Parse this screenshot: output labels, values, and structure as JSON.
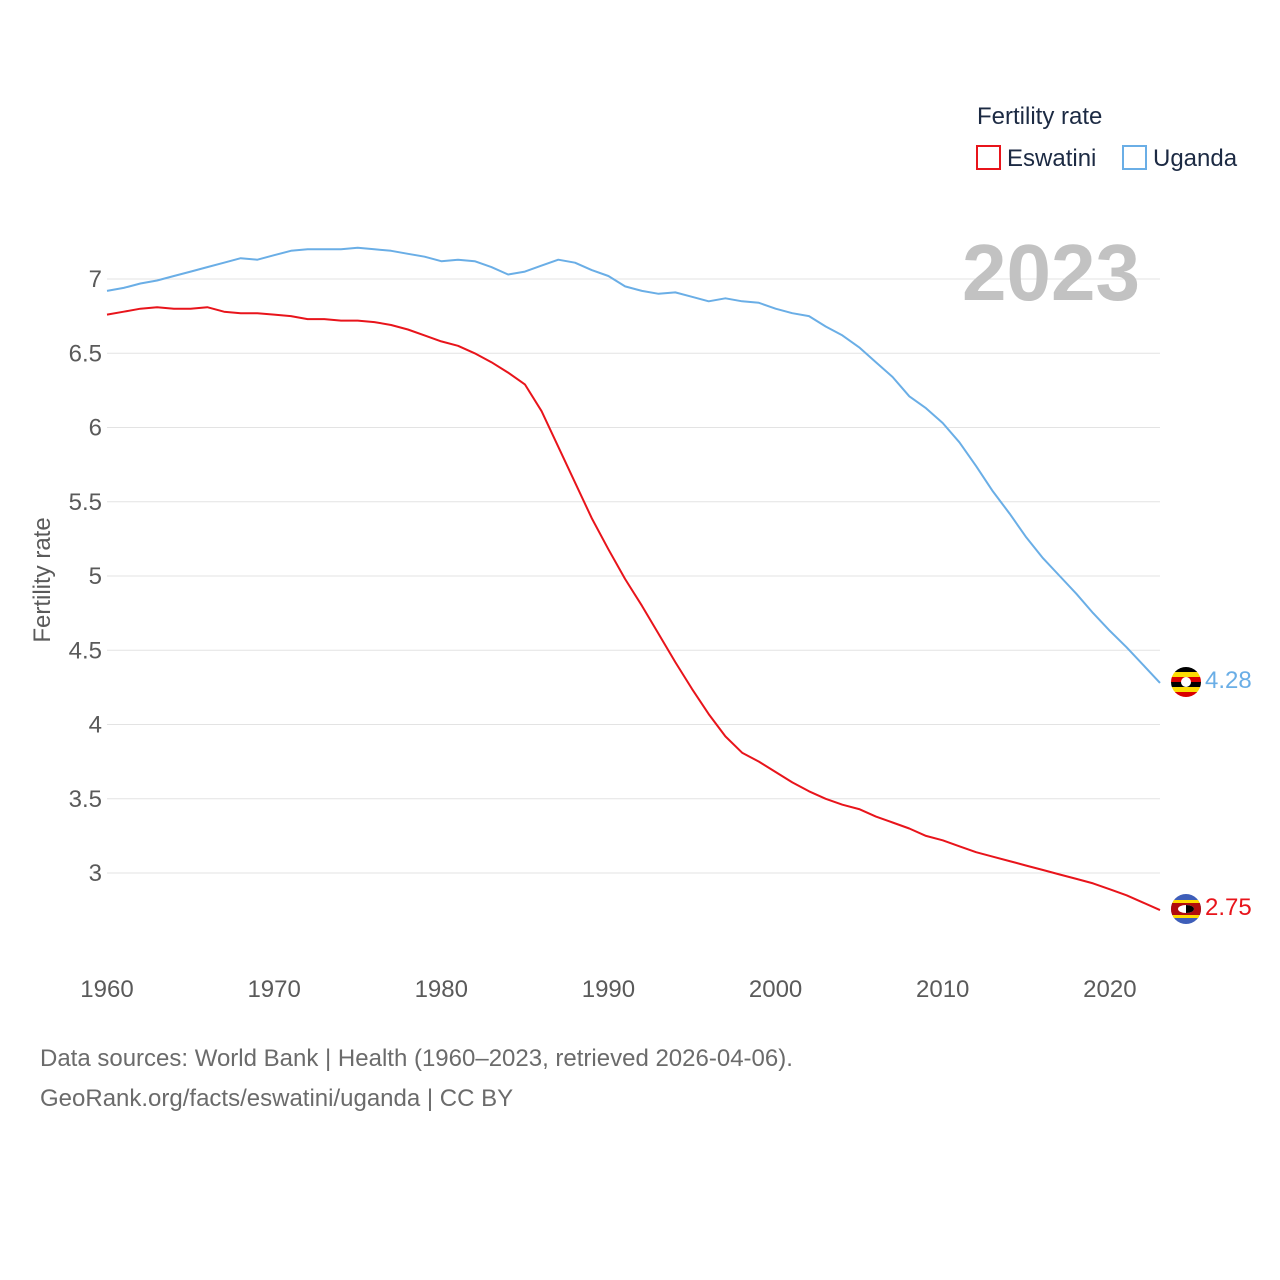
{
  "chart_data": {
    "type": "line",
    "title": "",
    "xlabel": "",
    "ylabel": "Fertility rate",
    "legend_title": "Fertility rate",
    "legend_position": "top-right",
    "year_label": "2023",
    "xlim": [
      1960,
      2023
    ],
    "ylim": [
      2.55,
      7.2
    ],
    "x_ticks": [
      1960,
      1970,
      1980,
      1990,
      2000,
      2010,
      2020
    ],
    "y_ticks": [
      3,
      3.5,
      4,
      4.5,
      5,
      5.5,
      6,
      6.5,
      7
    ],
    "y_tick_labels": [
      "3",
      "3.5",
      "4",
      "4.5",
      "5",
      "5.5",
      "6",
      "6.5",
      "7"
    ],
    "x": [
      1960,
      1961,
      1962,
      1963,
      1964,
      1965,
      1966,
      1967,
      1968,
      1969,
      1970,
      1971,
      1972,
      1973,
      1974,
      1975,
      1976,
      1977,
      1978,
      1979,
      1980,
      1981,
      1982,
      1983,
      1984,
      1985,
      1986,
      1987,
      1988,
      1989,
      1990,
      1991,
      1992,
      1993,
      1994,
      1995,
      1996,
      1997,
      1998,
      1999,
      2000,
      2001,
      2002,
      2003,
      2004,
      2005,
      2006,
      2007,
      2008,
      2009,
      2010,
      2011,
      2012,
      2013,
      2014,
      2015,
      2016,
      2017,
      2018,
      2019,
      2020,
      2021,
      2022,
      2023
    ],
    "series": [
      {
        "name": "Eswatini",
        "color": "#e8141b",
        "end_label": "2.75",
        "flag": "eswatini-flag-icon",
        "values": [
          6.76,
          6.78,
          6.8,
          6.81,
          6.8,
          6.8,
          6.81,
          6.78,
          6.77,
          6.77,
          6.76,
          6.75,
          6.73,
          6.73,
          6.72,
          6.72,
          6.71,
          6.69,
          6.66,
          6.62,
          6.58,
          6.55,
          6.5,
          6.44,
          6.37,
          6.29,
          6.11,
          5.87,
          5.63,
          5.39,
          5.18,
          4.98,
          4.8,
          4.61,
          4.42,
          4.24,
          4.07,
          3.92,
          3.81,
          3.75,
          3.68,
          3.61,
          3.55,
          3.5,
          3.46,
          3.43,
          3.38,
          3.34,
          3.3,
          3.25,
          3.22,
          3.18,
          3.14,
          3.11,
          3.08,
          3.05,
          3.02,
          2.99,
          2.96,
          2.93,
          2.89,
          2.85,
          2.8,
          2.75
        ]
      },
      {
        "name": "Uganda",
        "color": "#6aaee6",
        "end_label": "4.28",
        "flag": "uganda-flag-icon",
        "values": [
          6.92,
          6.94,
          6.97,
          6.99,
          7.02,
          7.05,
          7.08,
          7.11,
          7.14,
          7.13,
          7.16,
          7.19,
          7.2,
          7.2,
          7.2,
          7.21,
          7.2,
          7.19,
          7.17,
          7.15,
          7.12,
          7.13,
          7.12,
          7.08,
          7.03,
          7.05,
          7.09,
          7.13,
          7.11,
          7.06,
          7.02,
          6.95,
          6.92,
          6.9,
          6.91,
          6.88,
          6.85,
          6.87,
          6.85,
          6.84,
          6.8,
          6.77,
          6.75,
          6.68,
          6.62,
          6.54,
          6.44,
          6.34,
          6.21,
          6.13,
          6.03,
          5.9,
          5.74,
          5.57,
          5.42,
          5.26,
          5.12,
          5.0,
          4.88,
          4.75,
          4.63,
          4.52,
          4.4,
          4.28
        ]
      }
    ]
  },
  "footer": {
    "sources": "Data sources: World Bank | Health (1960–2023, retrieved 2026-04-06).",
    "url": "GeoRank.org/facts/eswatini/uganda | CC BY"
  }
}
